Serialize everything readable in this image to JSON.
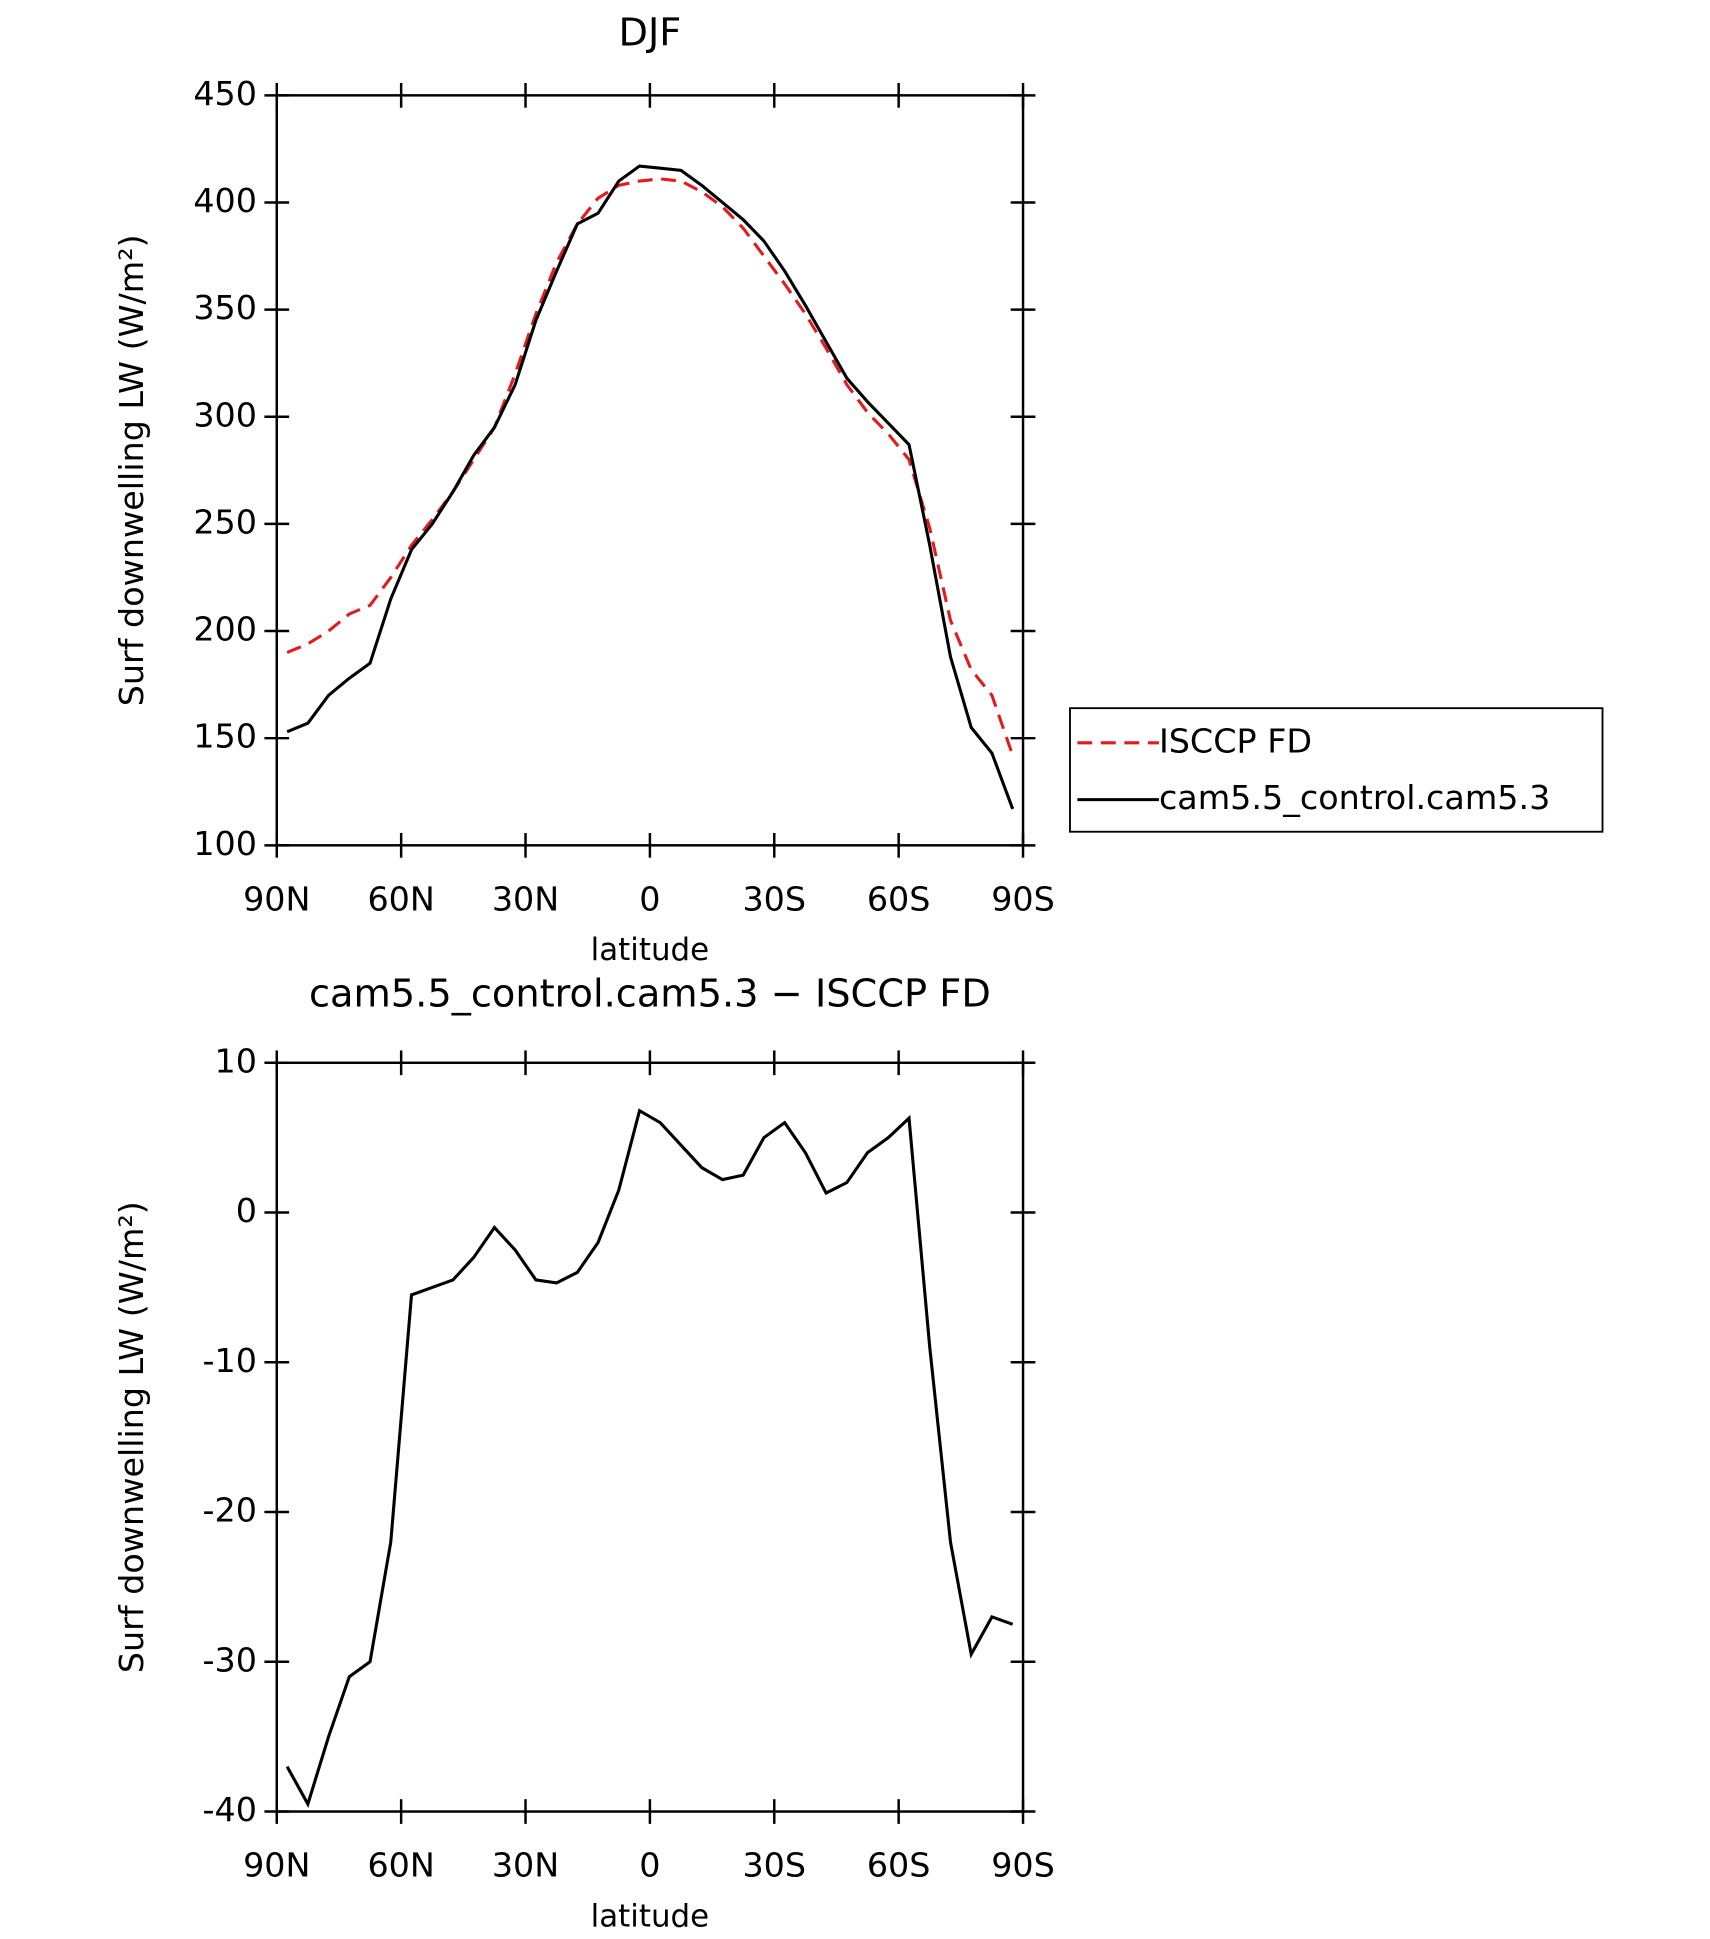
{
  "chart_data": [
    {
      "type": "line",
      "title": "DJF",
      "xlabel": "latitude",
      "ylabel": "Surf downwelling LW (W/m²)",
      "x": [
        87.5,
        82.5,
        77.5,
        72.5,
        67.5,
        62.5,
        57.5,
        52.5,
        47.5,
        42.5,
        37.5,
        32.5,
        27.5,
        22.5,
        17.5,
        12.5,
        7.5,
        2.5,
        -2.5,
        -7.5,
        -12.5,
        -17.5,
        -22.5,
        -27.5,
        -32.5,
        -37.5,
        -42.5,
        -47.5,
        -52.5,
        -57.5,
        -62.5,
        -67.5,
        -72.5,
        -77.5,
        -82.5,
        -87.5
      ],
      "series": [
        {
          "name": "ISCCP FD",
          "color": "#e41a1c",
          "linestyle": "dashed",
          "values": [
            190,
            194,
            200,
            208,
            212,
            225,
            240,
            252,
            265,
            280,
            295,
            320,
            348,
            372,
            390,
            402,
            408,
            410,
            411,
            410,
            405,
            398,
            388,
            375,
            362,
            348,
            332,
            315,
            302,
            292,
            280,
            248,
            205,
            182,
            170,
            142
          ]
        },
        {
          "name": "cam5.5_control.cam5.3",
          "color": "#000000",
          "linestyle": "solid",
          "values": [
            153,
            157,
            170,
            178,
            185,
            215,
            238,
            250,
            265,
            282,
            295,
            315,
            345,
            368,
            390,
            395,
            410,
            417,
            416,
            415,
            408,
            400,
            392,
            382,
            368,
            352,
            335,
            318,
            307,
            297,
            287,
            240,
            188,
            155,
            143,
            117
          ]
        }
      ],
      "xlim": [
        90,
        -90
      ],
      "xticks": [
        {
          "value": 90,
          "label": "90N"
        },
        {
          "value": 60,
          "label": "60N"
        },
        {
          "value": 30,
          "label": "30N"
        },
        0,
        {
          "value": -30,
          "label": "30S"
        },
        {
          "value": -60,
          "label": "60S"
        },
        {
          "value": -90,
          "label": "90S"
        }
      ],
      "ylim": [
        100,
        450
      ],
      "yticks": [
        100,
        150,
        200,
        250,
        300,
        350,
        400,
        450
      ],
      "legend": "right"
    },
    {
      "type": "line",
      "title": "cam5.5_control.cam5.3 − ISCCP FD",
      "xlabel": "latitude",
      "ylabel": "Surf downwelling LW (W/m²)",
      "x": [
        87.5,
        82.5,
        77.5,
        72.5,
        67.5,
        62.5,
        57.5,
        52.5,
        47.5,
        42.5,
        37.5,
        32.5,
        27.5,
        22.5,
        17.5,
        12.5,
        7.5,
        2.5,
        -2.5,
        -7.5,
        -12.5,
        -17.5,
        -22.5,
        -27.5,
        -32.5,
        -37.5,
        -42.5,
        -47.5,
        -52.5,
        -57.5,
        -62.5,
        -67.5,
        -72.5,
        -77.5,
        -82.5,
        -87.5
      ],
      "series": [
        {
          "color": "#000000",
          "linestyle": "solid",
          "values": [
            -37,
            -39.5,
            -35,
            -31,
            -30,
            -22,
            -5.5,
            -5,
            -4.5,
            -3,
            -1,
            -2.5,
            -4.5,
            -4.7,
            -4,
            -2,
            1.5,
            6.8,
            6,
            4.5,
            3,
            2.2,
            2.5,
            5,
            6,
            4,
            1.3,
            2,
            4,
            5,
            6.3,
            -9,
            -22,
            -29.5,
            -27,
            -27.5
          ]
        }
      ],
      "xlim": [
        90,
        -90
      ],
      "xticks": [
        {
          "value": 90,
          "label": "90N"
        },
        {
          "value": 60,
          "label": "60N"
        },
        {
          "value": 30,
          "label": "30N"
        },
        0,
        {
          "value": -30,
          "label": "30S"
        },
        {
          "value": -60,
          "label": "60S"
        },
        {
          "value": -90,
          "label": "90S"
        }
      ],
      "ylim": [
        -40,
        10
      ],
      "yticks": [
        -40,
        -30,
        -20,
        -10,
        0,
        10
      ]
    }
  ]
}
